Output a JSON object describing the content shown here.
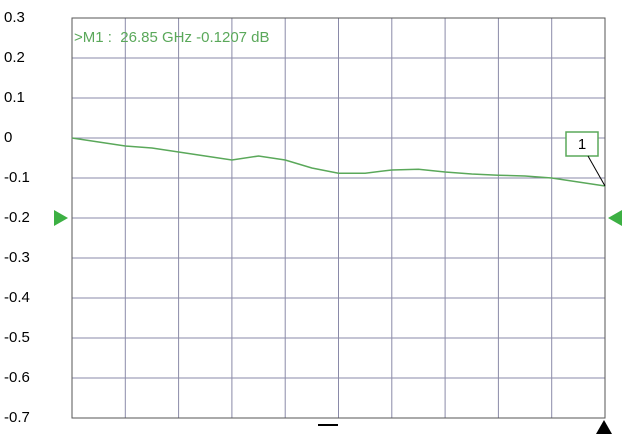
{
  "chart_data": {
    "type": "line",
    "annotation": ">M1 :  26.85 GHz -0.1207 dB",
    "marker_label": "1",
    "series": [
      {
        "color": "#5aa85a",
        "values": [
          0,
          -0.01,
          -0.02,
          -0.025,
          -0.035,
          -0.045,
          -0.055,
          -0.045,
          -0.055,
          -0.075,
          -0.088,
          -0.088,
          -0.08,
          -0.078,
          -0.085,
          -0.09,
          -0.093,
          -0.095,
          -0.1,
          -0.11,
          -0.12
        ]
      }
    ],
    "reference_level": -0.2,
    "ylim": [
      -0.7,
      0.3
    ],
    "yticks": [
      0.3,
      0.2,
      0.1,
      0,
      -0.1,
      -0.2,
      -0.3,
      -0.4,
      -0.5,
      -0.6,
      -0.7
    ],
    "xdivisions": 10,
    "grid": true
  }
}
